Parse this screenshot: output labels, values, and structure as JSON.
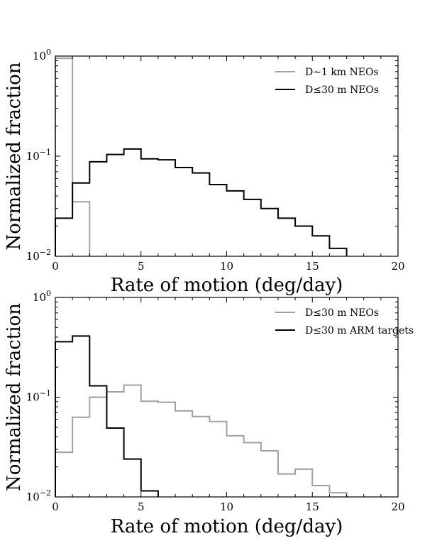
{
  "chart_data": [
    {
      "type": "step",
      "xlabel": "Rate of motion (deg/day)",
      "ylabel": "Normalized fraction",
      "xlim": [
        0,
        20
      ],
      "ylim": [
        0.01,
        1
      ],
      "yscale": "log",
      "xticks": [
        "0",
        "5",
        "10",
        "15",
        "20"
      ],
      "yticks": [
        {
          "base": "10",
          "exp": "0"
        },
        {
          "base": "10",
          "exp": "−1"
        },
        {
          "base": "10",
          "exp": "−2"
        }
      ],
      "legend_position": "top-right",
      "series": [
        {
          "name": "D∼1 km NEOs",
          "color": "#a0a0a0",
          "bins": [
            0,
            1,
            2
          ],
          "values": [
            0.95,
            0.035
          ]
        },
        {
          "name": "D≤30 m NEOs",
          "color": "#000000",
          "bins": [
            0,
            1,
            2,
            3,
            4,
            5,
            6,
            7,
            8,
            9,
            10,
            11,
            12,
            13,
            14,
            15,
            16,
            17
          ],
          "values": [
            0.024,
            0.054,
            0.088,
            0.104,
            0.118,
            0.094,
            0.092,
            0.077,
            0.068,
            0.052,
            0.045,
            0.037,
            0.03,
            0.024,
            0.02,
            0.016,
            0.012
          ]
        }
      ]
    },
    {
      "type": "step",
      "xlabel": "Rate of motion (deg/day)",
      "ylabel": "Normalized fraction",
      "xlim": [
        0,
        20
      ],
      "ylim": [
        0.01,
        1
      ],
      "yscale": "log",
      "xticks": [
        "0",
        "5",
        "10",
        "15",
        "20"
      ],
      "yticks": [
        {
          "base": "10",
          "exp": "0"
        },
        {
          "base": "10",
          "exp": "−1"
        },
        {
          "base": "10",
          "exp": "−2"
        }
      ],
      "legend_position": "top-right",
      "series": [
        {
          "name": "D≤30 m NEOs",
          "color": "#a0a0a0",
          "bins": [
            0,
            1,
            2,
            3,
            4,
            5,
            6,
            7,
            8,
            9,
            10,
            11,
            12,
            13,
            14,
            15,
            16,
            17
          ],
          "values": [
            0.028,
            0.063,
            0.1,
            0.113,
            0.132,
            0.091,
            0.089,
            0.073,
            0.064,
            0.057,
            0.041,
            0.035,
            0.029,
            0.017,
            0.019,
            0.013,
            0.011
          ]
        },
        {
          "name": "D≤30 m ARM targets",
          "color": "#000000",
          "bins": [
            0,
            1,
            2,
            3,
            4,
            5,
            6
          ],
          "values": [
            0.36,
            0.41,
            0.13,
            0.049,
            0.024,
            0.0115
          ]
        }
      ]
    }
  ]
}
